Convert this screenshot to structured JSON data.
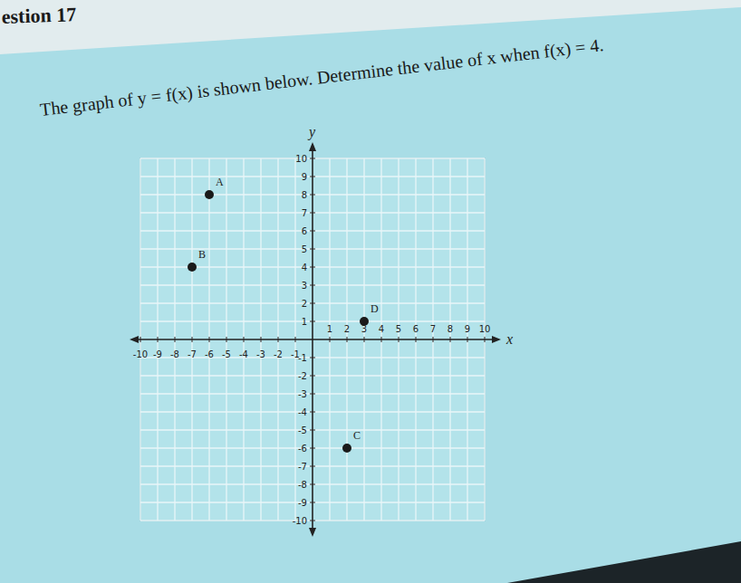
{
  "chart_data": {
    "type": "scatter",
    "title": "estion 17",
    "subtitle": "The graph of y = f(x) is shown below. Determine the value of x when f(x) = 4.",
    "x_label": "x",
    "y_label": "y",
    "x": [
      -6,
      -7,
      2,
      3
    ],
    "values": [
      8,
      4,
      -6,
      1
    ],
    "point_labels": [
      "A",
      "B",
      "C",
      "D"
    ],
    "color": "#1a1a1a",
    "marker": "circle",
    "xlim": [
      -10,
      10
    ],
    "ylim": [
      -10,
      10
    ],
    "xticks": [
      -10,
      -9,
      -8,
      -7,
      -6,
      -5,
      -4,
      -3,
      -2,
      -1,
      1,
      2,
      3,
      4,
      5,
      6,
      7,
      8,
      9,
      10
    ],
    "yticks": [
      -10,
      -9,
      -8,
      -7,
      -6,
      -5,
      -4,
      -3,
      -2,
      -1,
      1,
      2,
      3,
      4,
      5,
      6,
      7,
      8,
      9,
      10
    ],
    "grid": true
  }
}
